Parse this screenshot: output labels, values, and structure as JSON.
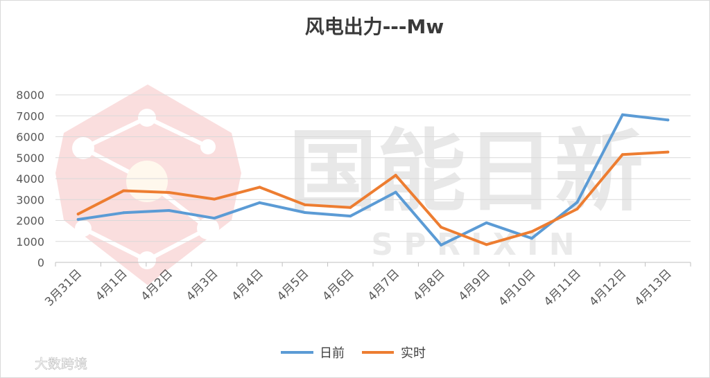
{
  "chart_data": {
    "type": "line",
    "title": "风电出力---Mw",
    "xlabel": "",
    "ylabel": "",
    "categories": [
      "3月31日",
      "4月1日",
      "4月2日",
      "4月3日",
      "4月4日",
      "4月5日",
      "4月6日",
      "4月7日",
      "4月8日",
      "4月9日",
      "4月10日",
      "4月11日",
      "4月12日",
      "4月13日"
    ],
    "ylim": [
      0,
      8000
    ],
    "yticks": [
      "8000",
      "7000",
      "6000",
      "5000",
      "4000",
      "3000",
      "2000",
      "1000",
      "0"
    ],
    "grid": true,
    "legend_position": "bottom",
    "series": [
      {
        "name": "日前",
        "color": "#5b9bd5",
        "values": [
          2050,
          2370,
          2480,
          2110,
          2850,
          2380,
          2210,
          3350,
          830,
          1890,
          1150,
          2870,
          7050,
          6800
        ]
      },
      {
        "name": "实时",
        "color": "#ed7d31",
        "values": [
          2310,
          3420,
          3340,
          3020,
          3590,
          2750,
          2620,
          4160,
          1680,
          850,
          1470,
          2550,
          5150,
          5270
        ]
      }
    ]
  },
  "watermark": {
    "brand_cn": "国能日新",
    "brand_en": "S P R I X I N",
    "source_label": "大数跨境",
    "logo_color": "#f4b6b6",
    "brand_color": "#e8e8e8"
  }
}
